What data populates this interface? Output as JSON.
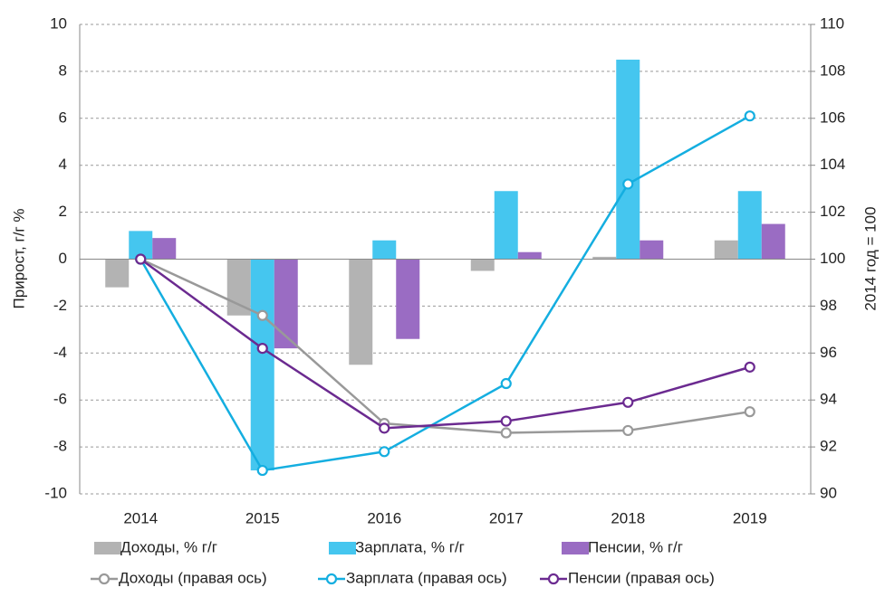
{
  "chart_data": {
    "type": "bar",
    "categories": [
      "2014",
      "2015",
      "2016",
      "2017",
      "2018",
      "2019"
    ],
    "ylabel": "Прирост, г/г %",
    "y2label": "2014 год = 100",
    "ylim": [
      -10,
      10
    ],
    "yticks": [
      -10,
      -8,
      -6,
      -4,
      -2,
      0,
      2,
      4,
      6,
      8,
      10
    ],
    "y2lim": [
      90,
      110
    ],
    "y2ticks": [
      90,
      92,
      94,
      96,
      98,
      100,
      102,
      104,
      106,
      108,
      110
    ],
    "grid": true,
    "series": [
      {
        "name": "Доходы, % г/г",
        "type": "bar",
        "color": "#b3b3b3",
        "values": [
          -1.2,
          -2.4,
          -4.5,
          -0.5,
          0.1,
          0.8
        ]
      },
      {
        "name": "Зарплата, % г/г",
        "type": "bar",
        "color": "#45c6ef",
        "values": [
          1.2,
          -9.0,
          0.8,
          2.9,
          8.5,
          2.9
        ]
      },
      {
        "name": "Пенсии, % г/г",
        "type": "bar",
        "color": "#9a6cc3",
        "values": [
          0.9,
          -3.8,
          -3.4,
          0.3,
          0.8,
          1.5
        ]
      },
      {
        "name": "Доходы (правая ось)",
        "type": "line",
        "axis": "y2",
        "color": "#999999",
        "values": [
          100,
          97.6,
          93.0,
          92.6,
          92.7,
          93.5
        ]
      },
      {
        "name": "Зарплата (правая ось)",
        "type": "line",
        "axis": "y2",
        "color": "#14aee0",
        "values": [
          100,
          91.0,
          91.8,
          94.7,
          103.2,
          106.1
        ]
      },
      {
        "name": "Пенсии (правая ось)",
        "type": "line",
        "axis": "y2",
        "color": "#6b2a90",
        "values": [
          100,
          96.2,
          92.8,
          93.1,
          93.9,
          95.4
        ]
      }
    ]
  }
}
